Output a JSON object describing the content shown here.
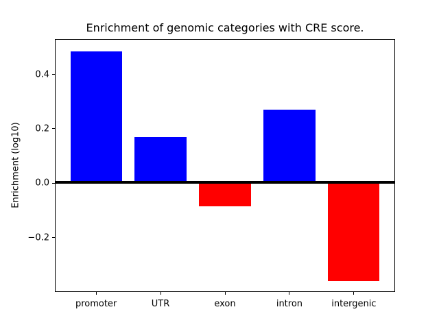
{
  "figure": {
    "background": "#ffffff"
  },
  "chart_data": {
    "type": "bar",
    "title": "Enrichment of genomic categories with CRE score.",
    "ylabel": "Enrichment (log10)",
    "xlabel": "",
    "categories": [
      "promoter",
      "UTR",
      "exon",
      "intron",
      "intergenic"
    ],
    "values": [
      0.485,
      0.17,
      -0.085,
      0.27,
      -0.36
    ],
    "bar_colors": [
      "#0000ff",
      "#0000ff",
      "#ff0000",
      "#0000ff",
      "#ff0000"
    ],
    "positive_color": "#0000ff",
    "negative_color": "#ff0000",
    "yticks": [
      {
        "value": 0.4,
        "label": "0.4"
      },
      {
        "value": 0.2,
        "label": "0.2"
      },
      {
        "value": 0.0,
        "label": "0.0"
      },
      {
        "value": -0.2,
        "label": "−0.2"
      }
    ],
    "ylim": [
      -0.4,
      0.53
    ],
    "xlim": [
      -0.64,
      4.64
    ],
    "bar_width": 0.8,
    "grid": false,
    "legend": false,
    "zero_line": {
      "show": true,
      "color": "#000000"
    },
    "axis_color": "#000000"
  }
}
